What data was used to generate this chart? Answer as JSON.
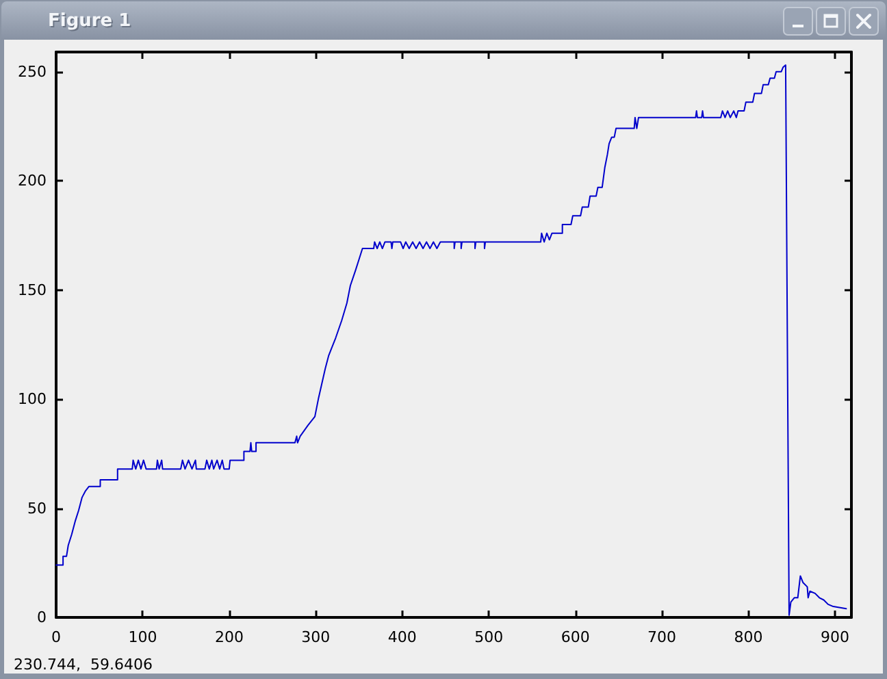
{
  "chart_data": {
    "type": "line",
    "title": "Figure 1",
    "annotations": [
      "230.744,  59.6406"
    ],
    "x": [
      0,
      8,
      8,
      12,
      14,
      18,
      22,
      26,
      30,
      34,
      38,
      51,
      51,
      71,
      71,
      88,
      89,
      92,
      95,
      98,
      101,
      104,
      116,
      117,
      119,
      122,
      123,
      144,
      146,
      149,
      153,
      157,
      161,
      162,
      172,
      174,
      177,
      180,
      182,
      186,
      189,
      192,
      194,
      200,
      201,
      217,
      217,
      224,
      225,
      226,
      231,
      231,
      276,
      278,
      279,
      282,
      291,
      299,
      303,
      307,
      311,
      315,
      323,
      330,
      336,
      340,
      346,
      350,
      354,
      367,
      368,
      371,
      374,
      377,
      380,
      387,
      388,
      389,
      398,
      401,
      404,
      408,
      412,
      416,
      420,
      424,
      428,
      432,
      436,
      440,
      444,
      460,
      460,
      461,
      468,
      468,
      469,
      484,
      484,
      485,
      495,
      495,
      496,
      560,
      561,
      564,
      567,
      570,
      573,
      585,
      585,
      595,
      597,
      606,
      608,
      615,
      617,
      624,
      626,
      631,
      634,
      637,
      639,
      642,
      645,
      647,
      668,
      669,
      671,
      673,
      739,
      740,
      741,
      746,
      747,
      748,
      768,
      770,
      773,
      776,
      779,
      783,
      786,
      788,
      795,
      797,
      805,
      807,
      815,
      817,
      823,
      825,
      830,
      832,
      838,
      840,
      843,
      845,
      847,
      849,
      853,
      857,
      860,
      863,
      868,
      869,
      871,
      877,
      882,
      887,
      892,
      898,
      913
    ],
    "values": [
      24,
      24,
      28,
      28,
      33,
      38,
      44,
      49,
      55,
      58,
      60,
      60,
      63,
      63,
      68,
      68,
      72,
      68,
      72,
      68,
      72,
      68,
      68,
      72,
      68,
      72,
      68,
      68,
      72,
      68,
      72,
      68,
      72,
      68,
      68,
      72,
      68,
      72,
      68,
      72,
      68,
      72,
      68,
      68,
      72,
      72,
      76,
      76,
      80,
      76,
      76,
      80,
      80,
      83,
      80,
      83,
      88,
      92,
      100,
      107,
      114,
      120,
      128,
      136,
      144,
      152,
      159,
      164,
      169,
      169,
      172,
      169,
      172,
      169,
      172,
      172,
      169,
      172,
      172,
      169,
      172,
      169,
      172,
      169,
      172,
      169,
      172,
      169,
      172,
      169,
      172,
      172,
      169,
      172,
      172,
      169,
      172,
      172,
      169,
      172,
      172,
      169,
      172,
      172,
      176,
      172,
      176,
      173,
      176,
      176,
      180,
      180,
      184,
      184,
      188,
      188,
      193,
      193,
      197,
      197,
      206,
      212,
      217,
      220,
      220,
      224,
      224,
      229,
      224,
      229,
      229,
      232,
      229,
      229,
      232,
      229,
      229,
      232,
      229,
      232,
      229,
      232,
      229,
      232,
      232,
      236,
      236,
      240,
      240,
      244,
      244,
      247,
      247,
      250,
      250,
      252,
      253,
      126,
      1,
      7,
      9,
      9,
      19,
      16,
      14,
      9,
      12,
      11,
      9,
      8,
      6,
      5,
      4
    ],
    "color": "#0000cc",
    "xlim": [
      0,
      919
    ],
    "ylim": [
      0,
      259
    ],
    "xticks": [
      0,
      100,
      200,
      300,
      400,
      500,
      600,
      700,
      800,
      900
    ],
    "yticks": [
      0,
      50,
      100,
      150,
      200,
      250
    ],
    "marker": "none",
    "line_style": "solid"
  }
}
